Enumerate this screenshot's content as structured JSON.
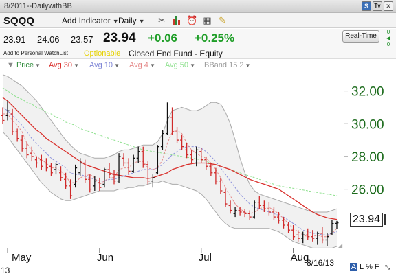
{
  "window": {
    "title": "8/2011--DailywithBB"
  },
  "toolbar": {
    "symbol": "SQQQ",
    "add_indicator": "Add Indicator",
    "period": "Daily",
    "icons": [
      "tools-icon",
      "candlestick-icon",
      "alarm-clock-icon",
      "table-icon",
      "notes-icon"
    ]
  },
  "quote": {
    "open": "23.91",
    "high": "24.06",
    "low": "23.57",
    "last": "23.94",
    "change": "+0.06",
    "change_pct": "+0.25%",
    "realtime_label": "Real-Time",
    "realtime_side_top": "0",
    "realtime_side_bottom": "0"
  },
  "info": {
    "watchlist": "Add to Personal WatchList",
    "optionable": "Optionable",
    "fund_type": "Closed End Fund - Equity"
  },
  "legend": [
    {
      "label": "Price",
      "color": "#2e8b3a"
    },
    {
      "label": "Avg 30",
      "color": "#d9302c"
    },
    {
      "label": "Avg 10",
      "color": "#7f86d6"
    },
    {
      "label": "Avg 4",
      "color": "#e58a8a"
    },
    {
      "label": "Avg 50",
      "color": "#8ee08e"
    },
    {
      "label": "BBand 15 2",
      "color": "#9a9a9a"
    }
  ],
  "chart_data": {
    "type": "bar",
    "title": "",
    "ylim": [
      22.5,
      33.2
    ],
    "y_ticks": [
      "32.00",
      "30.00",
      "28.00",
      "26.00"
    ],
    "y_tick_values": [
      32,
      30,
      28,
      26
    ],
    "x_month_labels": [
      "May",
      "Jun",
      "Jul",
      "Aug"
    ],
    "x_month_index": [
      1,
      20,
      41,
      60
    ],
    "num_sessions": 70,
    "ohlc": [
      [
        30.5,
        31.0,
        30.0,
        30.2
      ],
      [
        30.5,
        31.4,
        30.2,
        30.8
      ],
      [
        30.6,
        30.9,
        29.3,
        29.5
      ],
      [
        29.5,
        29.7,
        28.9,
        29.1
      ],
      [
        29.0,
        29.3,
        28.3,
        28.5
      ],
      [
        28.5,
        28.8,
        27.9,
        28.1
      ],
      [
        28.2,
        28.6,
        27.7,
        28.0
      ],
      [
        27.8,
        28.0,
        27.3,
        27.6
      ],
      [
        27.8,
        28.1,
        27.2,
        27.4
      ],
      [
        27.6,
        27.9,
        27.1,
        27.3
      ],
      [
        27.4,
        27.6,
        26.8,
        27.0
      ],
      [
        27.2,
        27.6,
        26.9,
        27.5
      ],
      [
        27.0,
        27.4,
        26.5,
        26.7
      ],
      [
        26.6,
        27.0,
        26.0,
        26.2
      ],
      [
        26.2,
        26.6,
        25.4,
        25.6
      ],
      [
        26.3,
        27.5,
        26.1,
        27.3
      ],
      [
        27.0,
        27.9,
        26.8,
        27.6
      ],
      [
        27.6,
        27.8,
        26.4,
        26.6
      ],
      [
        26.6,
        26.9,
        25.8,
        26.0
      ],
      [
        26.2,
        26.8,
        25.9,
        26.5
      ],
      [
        26.4,
        26.7,
        25.9,
        26.1
      ],
      [
        26.3,
        27.3,
        26.1,
        27.2
      ],
      [
        27.2,
        27.6,
        26.7,
        26.9
      ],
      [
        26.9,
        27.2,
        26.3,
        26.5
      ],
      [
        26.5,
        28.2,
        26.4,
        28.0
      ],
      [
        27.9,
        28.2,
        27.4,
        27.6
      ],
      [
        27.6,
        27.9,
        26.9,
        27.1
      ],
      [
        27.1,
        28.1,
        27.0,
        27.9
      ],
      [
        27.9,
        28.6,
        27.6,
        28.3
      ],
      [
        28.3,
        28.6,
        27.3,
        27.5
      ],
      [
        27.5,
        27.7,
        26.3,
        26.5
      ],
      [
        26.5,
        26.9,
        26.1,
        26.7
      ],
      [
        27.0,
        28.7,
        26.9,
        28.6
      ],
      [
        28.6,
        29.6,
        28.4,
        29.4
      ],
      [
        29.4,
        31.3,
        29.3,
        30.4
      ],
      [
        30.4,
        31.0,
        29.3,
        29.5
      ],
      [
        29.5,
        29.8,
        28.8,
        29.0
      ],
      [
        29.0,
        29.3,
        28.4,
        28.6
      ],
      [
        28.4,
        28.8,
        27.9,
        28.1
      ],
      [
        28.1,
        28.4,
        27.6,
        27.8
      ],
      [
        27.6,
        28.6,
        27.4,
        28.4
      ],
      [
        28.3,
        28.5,
        27.6,
        27.8
      ],
      [
        27.8,
        28.0,
        27.2,
        27.4
      ],
      [
        27.4,
        27.6,
        26.8,
        27.0
      ],
      [
        27.0,
        27.3,
        26.3,
        26.5
      ],
      [
        26.5,
        26.7,
        25.7,
        25.9
      ],
      [
        25.8,
        26.0,
        24.9,
        25.1
      ],
      [
        25.0,
        25.3,
        24.5,
        24.7
      ],
      [
        24.5,
        24.9,
        24.3,
        24.7
      ],
      [
        24.7,
        24.9,
        24.4,
        24.6
      ],
      [
        24.6,
        24.8,
        24.3,
        24.5
      ],
      [
        24.5,
        24.7,
        24.1,
        24.3
      ],
      [
        24.3,
        25.3,
        24.2,
        25.2
      ],
      [
        25.2,
        25.6,
        24.8,
        25.0
      ],
      [
        25.0,
        25.3,
        24.6,
        24.8
      ],
      [
        24.8,
        25.2,
        24.4,
        24.6
      ],
      [
        24.6,
        24.9,
        24.1,
        24.3
      ],
      [
        24.3,
        24.6,
        23.9,
        24.1
      ],
      [
        24.1,
        24.3,
        23.6,
        23.8
      ],
      [
        23.8,
        24.0,
        23.3,
        23.5
      ],
      [
        23.5,
        23.8,
        22.9,
        23.1
      ],
      [
        23.2,
        23.5,
        22.8,
        23.0
      ],
      [
        23.0,
        23.4,
        22.7,
        23.2
      ],
      [
        23.2,
        23.6,
        22.9,
        23.1
      ],
      [
        23.1,
        23.5,
        22.8,
        23.0
      ],
      [
        23.0,
        23.4,
        22.6,
        23.3
      ],
      [
        23.3,
        23.7,
        22.7,
        22.9
      ],
      [
        22.9,
        23.3,
        22.5,
        23.1
      ],
      [
        23.3,
        24.1,
        23.2,
        23.9
      ],
      [
        23.91,
        24.06,
        23.57,
        23.94
      ]
    ],
    "avg30": [
      31.6,
      31.4,
      31.1,
      30.8,
      30.5,
      30.2,
      29.9,
      29.6,
      29.4,
      29.1,
      28.9,
      28.7,
      28.5,
      28.3,
      28.1,
      27.9,
      27.7,
      27.5,
      27.4,
      27.3,
      27.2,
      27.1,
      27.0,
      26.9,
      26.85,
      26.8,
      26.75,
      26.7,
      26.7,
      26.7,
      26.65,
      26.7,
      26.8,
      26.9,
      27.0,
      27.2,
      27.3,
      27.4,
      27.5,
      27.55,
      27.6,
      27.6,
      27.6,
      27.55,
      27.5,
      27.4,
      27.3,
      27.2,
      27.05,
      26.9,
      26.75,
      26.6,
      26.5,
      26.4,
      26.3,
      26.2,
      26.1,
      26.0,
      25.8,
      25.6,
      25.4,
      25.2,
      25.0,
      24.8,
      24.6,
      24.45,
      24.35,
      24.25,
      24.2,
      24.15
    ],
    "avg10": [
      31.0,
      30.8,
      30.5,
      30.2,
      29.9,
      29.5,
      29.1,
      28.8,
      28.5,
      28.2,
      27.9,
      27.7,
      27.5,
      27.3,
      27.0,
      26.9,
      26.9,
      26.8,
      26.7,
      26.6,
      26.5,
      26.5,
      26.6,
      26.6,
      26.7,
      26.8,
      26.9,
      27.0,
      27.1,
      27.2,
      27.2,
      27.2,
      27.3,
      27.5,
      27.8,
      28.1,
      28.3,
      28.5,
      28.6,
      28.6,
      28.6,
      28.5,
      28.3,
      28.0,
      27.7,
      27.3,
      26.9,
      26.5,
      26.1,
      25.7,
      25.4,
      25.1,
      24.9,
      24.8,
      24.7,
      24.6,
      24.5,
      24.4,
      24.3,
      24.1,
      23.9,
      23.7,
      23.5,
      23.4,
      23.3,
      23.3,
      23.2,
      23.2,
      23.3,
      23.4
    ],
    "avg4": [
      30.6,
      30.6,
      30.2,
      29.9,
      29.5,
      28.8,
      28.4,
      28.0,
      27.8,
      27.6,
      27.3,
      27.3,
      27.1,
      26.8,
      26.4,
      26.4,
      26.7,
      26.8,
      26.9,
      26.7,
      26.3,
      26.5,
      26.7,
      26.7,
      27.2,
      27.3,
      27.3,
      27.6,
      27.7,
      27.7,
      27.3,
      27.2,
      27.3,
      27.8,
      28.8,
      29.5,
      29.6,
      29.4,
      28.8,
      28.4,
      28.2,
      28.0,
      27.9,
      27.6,
      27.2,
      26.7,
      26.1,
      25.6,
      25.1,
      24.8,
      24.6,
      24.5,
      24.6,
      24.8,
      24.9,
      24.9,
      24.7,
      24.5,
      24.2,
      23.9,
      23.6,
      23.4,
      23.2,
      23.1,
      23.1,
      23.2,
      23.1,
      23.1,
      23.3,
      23.6
    ],
    "avg50": [
      32.2,
      32.0,
      31.8,
      31.6,
      31.5,
      31.3,
      31.2,
      31.0,
      30.9,
      30.7,
      30.6,
      30.4,
      30.3,
      30.1,
      30.0,
      29.9,
      29.7,
      29.6,
      29.5,
      29.4,
      29.3,
      29.2,
      29.1,
      29.0,
      28.9,
      28.8,
      28.7,
      28.6,
      28.5,
      28.4,
      28.35,
      28.3,
      28.25,
      28.2,
      28.15,
      28.1,
      28.05,
      28.0,
      27.95,
      27.9,
      27.85,
      27.8,
      27.7,
      27.6,
      27.5,
      27.4,
      27.3,
      27.2,
      27.1,
      27.0,
      26.9,
      26.8,
      26.7,
      26.6,
      26.5,
      26.4,
      26.3,
      26.2,
      26.15,
      26.1,
      26.05,
      26.0,
      25.95,
      25.9,
      25.85,
      25.8,
      25.75,
      25.7,
      25.65,
      25.6
    ],
    "bb_upper": [
      33.0,
      32.9,
      32.7,
      32.5,
      32.3,
      32.0,
      31.7,
      31.4,
      31.0,
      30.6,
      30.2,
      29.8,
      29.4,
      29.0,
      28.7,
      28.4,
      28.2,
      28.1,
      28.0,
      27.9,
      27.9,
      27.9,
      28.0,
      28.1,
      28.3,
      28.4,
      28.4,
      28.5,
      28.6,
      28.7,
      28.7,
      28.7,
      28.9,
      29.4,
      30.2,
      30.8,
      30.9,
      31.0,
      30.9,
      30.8,
      30.8,
      30.9,
      31.1,
      31.3,
      31.3,
      31.2,
      30.7,
      30.0,
      29.0,
      27.9,
      27.0,
      26.3,
      25.9,
      25.7,
      25.6,
      25.5,
      25.4,
      25.3,
      25.2,
      25.1,
      25.0,
      24.9,
      24.8,
      24.7,
      24.6,
      24.6,
      24.6,
      24.6,
      24.7,
      24.8
    ],
    "bb_lower": [
      29.5,
      29.2,
      28.8,
      28.4,
      28.0,
      27.6,
      27.2,
      26.8,
      26.4,
      26.1,
      25.8,
      25.6,
      25.4,
      25.3,
      25.3,
      25.4,
      25.5,
      25.6,
      25.7,
      25.8,
      25.9,
      25.9,
      25.9,
      25.9,
      26.0,
      26.0,
      26.1,
      26.1,
      26.2,
      26.2,
      26.3,
      26.4,
      26.4,
      26.5,
      26.4,
      26.3,
      26.3,
      26.2,
      26.1,
      26.0,
      25.9,
      25.7,
      25.4,
      25.0,
      24.6,
      24.2,
      23.9,
      23.7,
      23.6,
      23.6,
      23.6,
      23.6,
      23.6,
      23.6,
      23.6,
      23.6,
      23.5,
      23.4,
      23.2,
      23.0,
      22.8,
      22.7,
      22.6,
      22.5,
      22.4,
      22.4,
      22.4,
      22.4,
      22.4,
      22.5
    ]
  },
  "last_price_label": "23.94",
  "footer": {
    "date": "8/16/13",
    "year": "13",
    "mode_active": "A",
    "mode_l": "L",
    "mode_pct": "%",
    "mode_f": "F"
  }
}
